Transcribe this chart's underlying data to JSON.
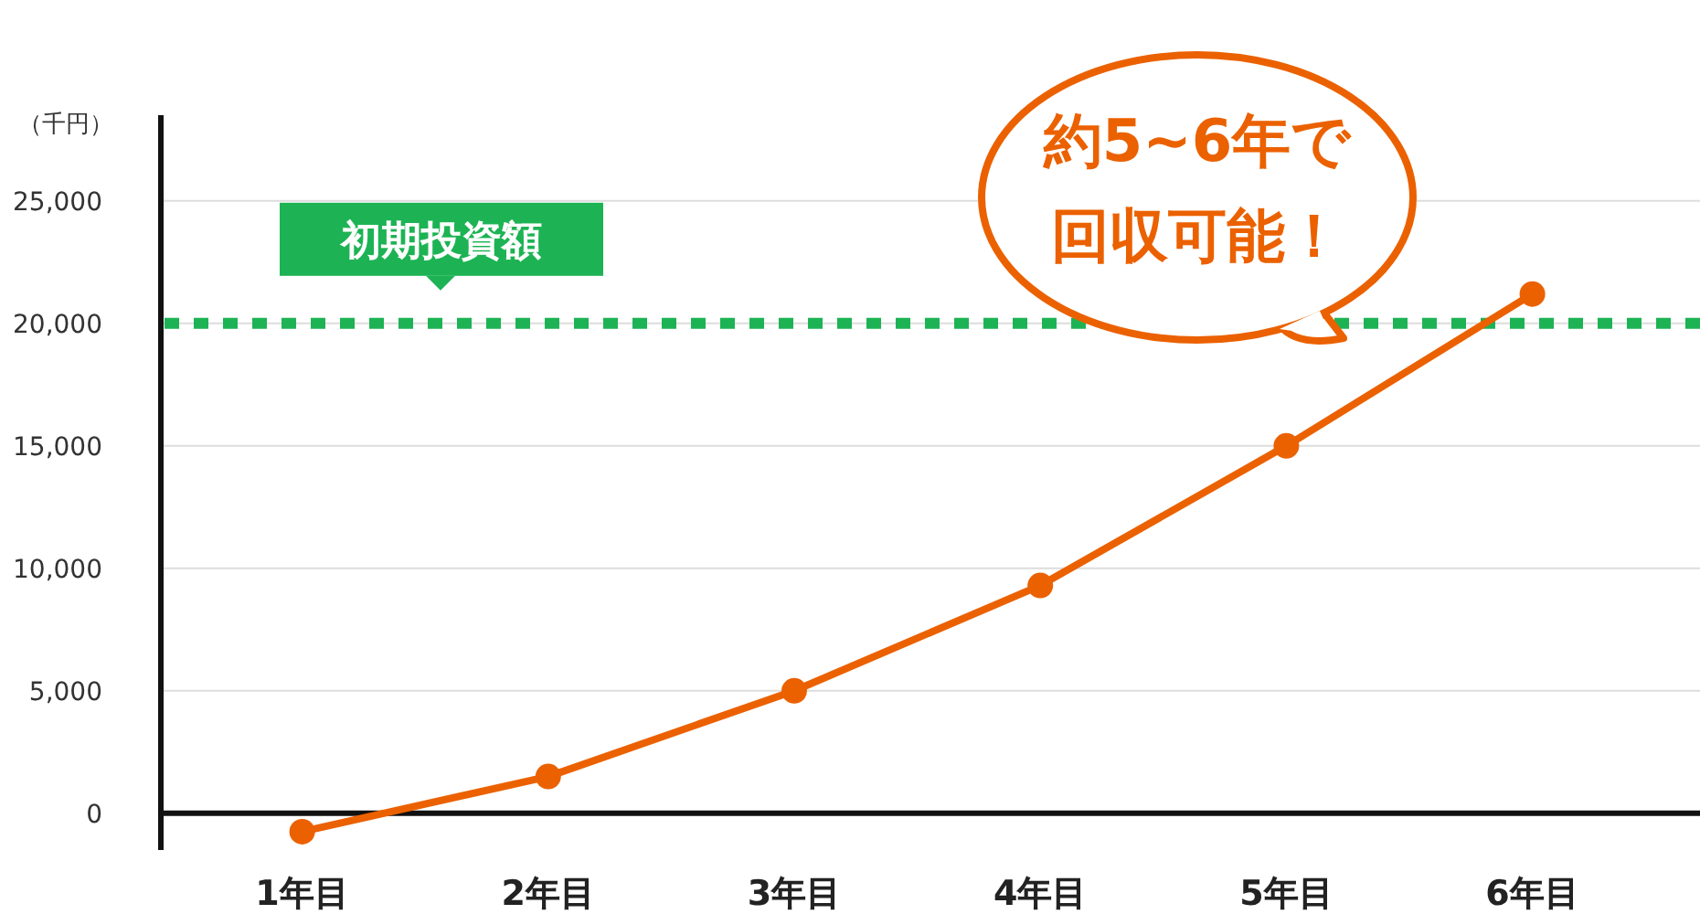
{
  "chart_data": {
    "type": "line",
    "ylabel": "（千円）",
    "categories": [
      "1年目",
      "2年目",
      "3年目",
      "4年目",
      "5年目",
      "6年目"
    ],
    "series": [
      {
        "color": "#eb6100",
        "values": [
          -750,
          1500,
          5000,
          9300,
          15000,
          21200
        ]
      }
    ],
    "ylim": [
      -1500,
      28500
    ],
    "yticks": [
      {
        "value": 0,
        "label": "0"
      },
      {
        "value": 5000,
        "label": "5,000"
      },
      {
        "value": 10000,
        "label": "10,000"
      },
      {
        "value": 15000,
        "label": "15,000"
      },
      {
        "value": 20000,
        "label": "20,000"
      },
      {
        "value": 25000,
        "label": "25,000"
      }
    ],
    "grid": "y",
    "marker": "circle",
    "line_style": "solid",
    "ref_lines": [
      {
        "axis": "y",
        "value": 20000,
        "label": "初期投資額",
        "color": "#1db354",
        "line_style": "dotted"
      }
    ],
    "annotations": [
      "約5~6年で回収可能！"
    ]
  }
}
